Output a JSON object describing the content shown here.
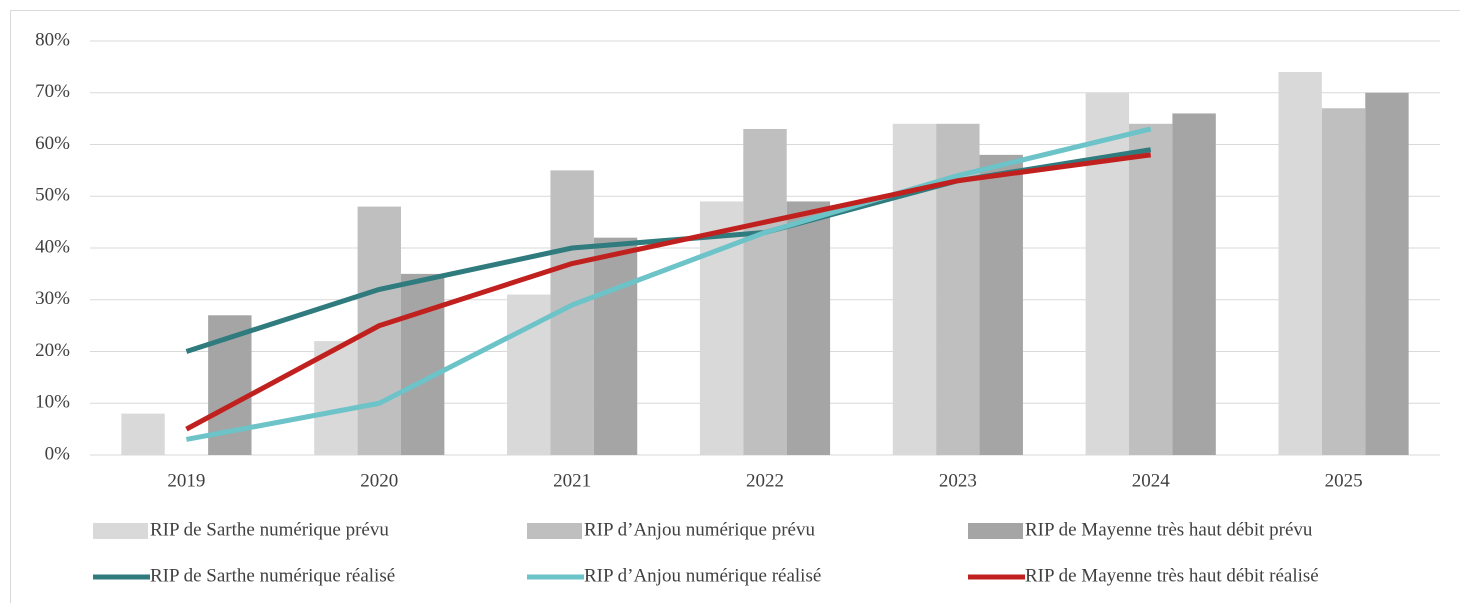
{
  "chart_data": {
    "type": "bar-line",
    "categories": [
      "2019",
      "2020",
      "2021",
      "2022",
      "2023",
      "2024",
      "2025"
    ],
    "series": [
      {
        "name": "RIP de Sarthe numérique prévu",
        "type": "bar",
        "color": "#d9d9d9",
        "values": [
          8,
          22,
          31,
          49,
          64,
          70,
          74
        ]
      },
      {
        "name": "RIP d’Anjou numérique prévu",
        "type": "bar",
        "color": "#bfbfbf",
        "values": [
          null,
          48,
          55,
          63,
          64,
          64,
          67
        ]
      },
      {
        "name": "RIP de Mayenne très haut débit prévu",
        "type": "bar",
        "color": "#a5a5a5",
        "values": [
          27,
          35,
          42,
          49,
          58,
          66,
          70
        ]
      },
      {
        "name": "RIP de Sarthe numérique réalisé",
        "type": "line",
        "color": "#2f7b7d",
        "values": [
          20,
          32,
          40,
          43,
          53,
          59,
          null
        ]
      },
      {
        "name": "RIP d’Anjou numérique réalisé",
        "type": "line",
        "color": "#6cc3c8",
        "values": [
          3,
          10,
          29,
          43,
          54,
          63,
          null
        ]
      },
      {
        "name": "RIP de Mayenne très haut débit réalisé",
        "type": "line",
        "color": "#c0211f",
        "values": [
          5,
          25,
          37,
          45,
          53,
          58,
          null
        ]
      }
    ],
    "ylim": [
      0,
      80
    ],
    "yticks": [
      {
        "value": 0,
        "label": "0%"
      },
      {
        "value": 10,
        "label": "10%"
      },
      {
        "value": 20,
        "label": "20%"
      },
      {
        "value": 30,
        "label": "30%"
      },
      {
        "value": 40,
        "label": "40%"
      },
      {
        "value": 50,
        "label": "50%"
      },
      {
        "value": 60,
        "label": "60%"
      },
      {
        "value": 70,
        "label": "70%"
      },
      {
        "value": 80,
        "label": "80%"
      }
    ],
    "grid": true,
    "legend": "bottom"
  }
}
